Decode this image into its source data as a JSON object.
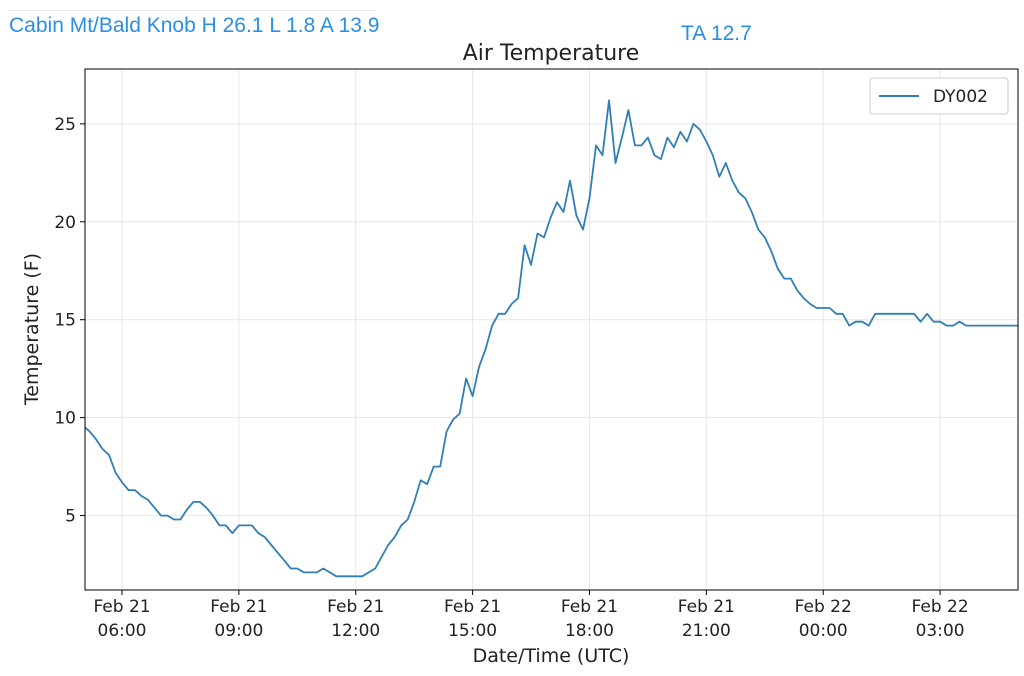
{
  "header": {
    "station_summary": "Cabin Mt/Bald Knob H 26.1 L 1.8 A 13.9",
    "ta": "TA 12.7"
  },
  "colors": {
    "header_text": "#2a8fe0",
    "series": "#2f7fb5"
  },
  "chart_data": {
    "type": "line",
    "title": "Air Temperature",
    "xlabel": "Date/Time (UTC)",
    "ylabel": "Temperature (F)",
    "grid": true,
    "legend_position": "top-right",
    "x_unit": "hours",
    "xlim": [
      "2024-02-21T05:03",
      "2024-02-22T05:00"
    ],
    "ylim": [
      1.2,
      27.8
    ],
    "yticks": [
      5,
      10,
      15,
      20,
      25
    ],
    "xticks": [
      {
        "t": "2024-02-21T06:00",
        "l1": "Feb 21",
        "l2": "06:00"
      },
      {
        "t": "2024-02-21T09:00",
        "l1": "Feb 21",
        "l2": "09:00"
      },
      {
        "t": "2024-02-21T12:00",
        "l1": "Feb 21",
        "l2": "12:00"
      },
      {
        "t": "2024-02-21T15:00",
        "l1": "Feb 21",
        "l2": "15:00"
      },
      {
        "t": "2024-02-21T18:00",
        "l1": "Feb 21",
        "l2": "18:00"
      },
      {
        "t": "2024-02-21T21:00",
        "l1": "Feb 21",
        "l2": "21:00"
      },
      {
        "t": "2024-02-22T00:00",
        "l1": "Feb 22",
        "l2": "00:00"
      },
      {
        "t": "2024-02-22T03:00",
        "l1": "Feb 22",
        "l2": "03:00"
      }
    ],
    "series": [
      {
        "name": "DY002",
        "points": [
          [
            "2024-02-21T05:00",
            9.5
          ],
          [
            "2024-02-21T05:10",
            9.3
          ],
          [
            "2024-02-21T05:20",
            8.9
          ],
          [
            "2024-02-21T05:30",
            8.4
          ],
          [
            "2024-02-21T05:40",
            8.1
          ],
          [
            "2024-02-21T05:50",
            7.2
          ],
          [
            "2024-02-21T06:00",
            6.7
          ],
          [
            "2024-02-21T06:10",
            6.3
          ],
          [
            "2024-02-21T06:20",
            6.3
          ],
          [
            "2024-02-21T06:30",
            6.0
          ],
          [
            "2024-02-21T06:40",
            5.8
          ],
          [
            "2024-02-21T06:50",
            5.4
          ],
          [
            "2024-02-21T07:00",
            5.0
          ],
          [
            "2024-02-21T07:10",
            5.0
          ],
          [
            "2024-02-21T07:20",
            4.8
          ],
          [
            "2024-02-21T07:30",
            4.8
          ],
          [
            "2024-02-21T07:40",
            5.3
          ],
          [
            "2024-02-21T07:50",
            5.7
          ],
          [
            "2024-02-21T08:00",
            5.7
          ],
          [
            "2024-02-21T08:10",
            5.4
          ],
          [
            "2024-02-21T08:20",
            5.0
          ],
          [
            "2024-02-21T08:30",
            4.5
          ],
          [
            "2024-02-21T08:40",
            4.5
          ],
          [
            "2024-02-21T08:50",
            4.1
          ],
          [
            "2024-02-21T09:00",
            4.5
          ],
          [
            "2024-02-21T09:10",
            4.5
          ],
          [
            "2024-02-21T09:20",
            4.5
          ],
          [
            "2024-02-21T09:30",
            4.1
          ],
          [
            "2024-02-21T09:40",
            3.9
          ],
          [
            "2024-02-21T09:50",
            3.5
          ],
          [
            "2024-02-21T10:00",
            3.1
          ],
          [
            "2024-02-21T10:10",
            2.7
          ],
          [
            "2024-02-21T10:20",
            2.3
          ],
          [
            "2024-02-21T10:30",
            2.3
          ],
          [
            "2024-02-21T10:40",
            2.1
          ],
          [
            "2024-02-21T10:50",
            2.1
          ],
          [
            "2024-02-21T11:00",
            2.1
          ],
          [
            "2024-02-21T11:10",
            2.3
          ],
          [
            "2024-02-21T11:20",
            2.1
          ],
          [
            "2024-02-21T11:30",
            1.9
          ],
          [
            "2024-02-21T12:00",
            1.9
          ],
          [
            "2024-02-21T12:10",
            1.9
          ],
          [
            "2024-02-21T12:20",
            2.1
          ],
          [
            "2024-02-21T12:30",
            2.3
          ],
          [
            "2024-02-21T12:40",
            2.9
          ],
          [
            "2024-02-21T12:50",
            3.5
          ],
          [
            "2024-02-21T13:00",
            3.9
          ],
          [
            "2024-02-21T13:10",
            4.5
          ],
          [
            "2024-02-21T13:20",
            4.8
          ],
          [
            "2024-02-21T13:30",
            5.7
          ],
          [
            "2024-02-21T13:40",
            6.8
          ],
          [
            "2024-02-21T13:50",
            6.6
          ],
          [
            "2024-02-21T14:00",
            7.5
          ],
          [
            "2024-02-21T14:10",
            7.5
          ],
          [
            "2024-02-21T14:20",
            9.3
          ],
          [
            "2024-02-21T14:30",
            9.9
          ],
          [
            "2024-02-21T14:40",
            10.2
          ],
          [
            "2024-02-21T14:50",
            12.0
          ],
          [
            "2024-02-21T15:00",
            11.1
          ],
          [
            "2024-02-21T15:10",
            12.6
          ],
          [
            "2024-02-21T15:20",
            13.5
          ],
          [
            "2024-02-21T15:30",
            14.7
          ],
          [
            "2024-02-21T15:40",
            15.3
          ],
          [
            "2024-02-21T15:50",
            15.3
          ],
          [
            "2024-02-21T16:00",
            15.8
          ],
          [
            "2024-02-21T16:10",
            16.1
          ],
          [
            "2024-02-21T16:20",
            18.8
          ],
          [
            "2024-02-21T16:30",
            17.8
          ],
          [
            "2024-02-21T16:40",
            19.4
          ],
          [
            "2024-02-21T16:50",
            19.2
          ],
          [
            "2024-02-21T17:00",
            20.2
          ],
          [
            "2024-02-21T17:10",
            21.0
          ],
          [
            "2024-02-21T17:20",
            20.5
          ],
          [
            "2024-02-21T17:30",
            22.1
          ],
          [
            "2024-02-21T17:40",
            20.3
          ],
          [
            "2024-02-21T17:50",
            19.6
          ],
          [
            "2024-02-21T18:00",
            21.2
          ],
          [
            "2024-02-21T18:10",
            23.9
          ],
          [
            "2024-02-21T18:20",
            23.4
          ],
          [
            "2024-02-21T18:30",
            26.2
          ],
          [
            "2024-02-21T18:40",
            23.0
          ],
          [
            "2024-02-21T18:50",
            24.3
          ],
          [
            "2024-02-21T19:00",
            25.7
          ],
          [
            "2024-02-21T19:10",
            23.9
          ],
          [
            "2024-02-21T19:20",
            23.9
          ],
          [
            "2024-02-21T19:30",
            24.3
          ],
          [
            "2024-02-21T19:40",
            23.4
          ],
          [
            "2024-02-21T19:50",
            23.2
          ],
          [
            "2024-02-21T20:00",
            24.3
          ],
          [
            "2024-02-21T20:10",
            23.8
          ],
          [
            "2024-02-21T20:20",
            24.6
          ],
          [
            "2024-02-21T20:30",
            24.1
          ],
          [
            "2024-02-21T20:40",
            25.0
          ],
          [
            "2024-02-21T20:50",
            24.7
          ],
          [
            "2024-02-21T21:00",
            24.1
          ],
          [
            "2024-02-21T21:10",
            23.4
          ],
          [
            "2024-02-21T21:20",
            22.3
          ],
          [
            "2024-02-21T21:30",
            23.0
          ],
          [
            "2024-02-21T21:40",
            22.1
          ],
          [
            "2024-02-21T21:50",
            21.5
          ],
          [
            "2024-02-21T22:00",
            21.2
          ],
          [
            "2024-02-21T22:10",
            20.5
          ],
          [
            "2024-02-21T22:20",
            19.6
          ],
          [
            "2024-02-21T22:30",
            19.2
          ],
          [
            "2024-02-21T22:40",
            18.5
          ],
          [
            "2024-02-21T22:50",
            17.6
          ],
          [
            "2024-02-21T23:00",
            17.1
          ],
          [
            "2024-02-21T23:10",
            17.1
          ],
          [
            "2024-02-21T23:20",
            16.5
          ],
          [
            "2024-02-21T23:30",
            16.1
          ],
          [
            "2024-02-21T23:40",
            15.8
          ],
          [
            "2024-02-21T23:50",
            15.6
          ],
          [
            "2024-02-22T00:00",
            15.6
          ],
          [
            "2024-02-22T00:10",
            15.6
          ],
          [
            "2024-02-22T00:20",
            15.3
          ],
          [
            "2024-02-22T00:30",
            15.3
          ],
          [
            "2024-02-22T00:40",
            14.7
          ],
          [
            "2024-02-22T00:50",
            14.9
          ],
          [
            "2024-02-22T01:00",
            14.9
          ],
          [
            "2024-02-22T01:10",
            14.7
          ],
          [
            "2024-02-22T01:20",
            15.3
          ],
          [
            "2024-02-22T01:30",
            15.3
          ],
          [
            "2024-02-22T02:00",
            15.3
          ],
          [
            "2024-02-22T02:20",
            15.3
          ],
          [
            "2024-02-22T02:30",
            14.9
          ],
          [
            "2024-02-22T02:40",
            15.3
          ],
          [
            "2024-02-22T02:50",
            14.9
          ],
          [
            "2024-02-22T03:00",
            14.9
          ],
          [
            "2024-02-22T03:10",
            14.7
          ],
          [
            "2024-02-22T03:20",
            14.7
          ],
          [
            "2024-02-22T03:30",
            14.9
          ],
          [
            "2024-02-22T03:40",
            14.7
          ],
          [
            "2024-02-22T05:00",
            14.7
          ]
        ]
      }
    ]
  }
}
